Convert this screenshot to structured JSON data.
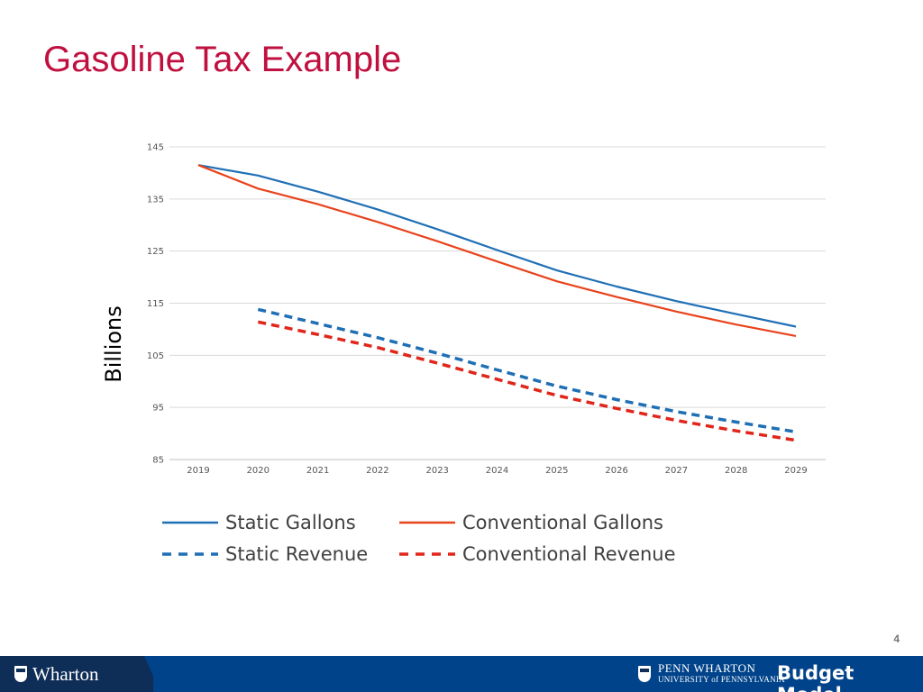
{
  "slide": {
    "title": "Gasoline Tax Example",
    "page_number": "4"
  },
  "footer": {
    "left_logo": "Wharton",
    "right_logo_line1": "PENN WHARTON",
    "right_logo_line2": "UNIVERSITY of PENNSYLVANIA",
    "right_logo_brand": "Budget Model"
  },
  "colors": {
    "title": "#c0103f",
    "static": "#1f6fb5",
    "conventional_gallons": "#e8431c",
    "conventional_revenue": "#e0261a",
    "footer": "#00438a"
  },
  "chart_data": {
    "type": "line",
    "title": "",
    "xlabel": "",
    "ylabel": "Billions",
    "ylim": [
      85,
      145
    ],
    "yticks": [
      85,
      95,
      105,
      115,
      125,
      135,
      145
    ],
    "grid": true,
    "legend_position": "bottom",
    "categories": [
      "2019",
      "2020",
      "2021",
      "2022",
      "2023",
      "2024",
      "2025",
      "2026",
      "2027",
      "2028",
      "2029"
    ],
    "series": [
      {
        "name": "Static Gallons",
        "style": "solid",
        "color": "#1f6fb5",
        "values": [
          141.5,
          139.5,
          136.4,
          133.0,
          129.2,
          125.2,
          121.3,
          118.2,
          115.4,
          112.9,
          110.5
        ]
      },
      {
        "name": "Conventional Gallons",
        "style": "solid",
        "color": "#e8431c",
        "values": [
          141.5,
          137.0,
          134.0,
          130.6,
          126.9,
          123.0,
          119.2,
          116.2,
          113.4,
          110.9,
          108.7
        ]
      },
      {
        "name": "Static Revenue",
        "style": "dashed",
        "color": "#1f6fb5",
        "values": [
          null,
          113.8,
          111.1,
          108.4,
          105.4,
          102.2,
          99.1,
          96.5,
          94.2,
          92.2,
          90.3
        ]
      },
      {
        "name": "Conventional Revenue",
        "style": "dashed",
        "color": "#e0261a",
        "values": [
          null,
          111.4,
          109.0,
          106.5,
          103.5,
          100.4,
          97.3,
          94.8,
          92.5,
          90.5,
          88.7
        ]
      }
    ]
  }
}
